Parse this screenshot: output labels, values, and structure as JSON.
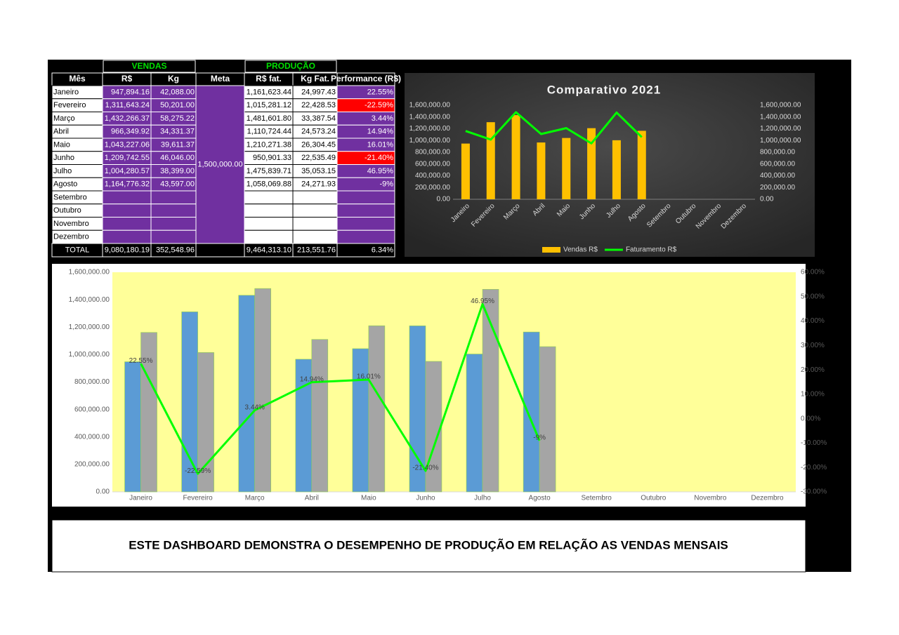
{
  "table": {
    "group_headers": [
      "VENDAS",
      "PRODUÇÃO"
    ],
    "headers": [
      "Mês",
      "R$",
      "Kg",
      "Meta",
      "R$ fat.",
      "Kg Fat.",
      "Performance (R$)"
    ],
    "meta": "1,500,000.00",
    "rows": [
      {
        "month": "Janeiro",
        "sales_value": "947,894.16",
        "sales_kg": "42,088.00",
        "prod_value": "1,161,623.44",
        "prod_kg": "24,997.43",
        "performance": "22.55%"
      },
      {
        "month": "Fevereiro",
        "sales_value": "1,311,643.24",
        "sales_kg": "50,201.00",
        "prod_value": "1,015,281.12",
        "prod_kg": "22,428.53",
        "performance": "-22.59%"
      },
      {
        "month": "Março",
        "sales_value": "1,432,266.37",
        "sales_kg": "58,275.22",
        "prod_value": "1,481,601.80",
        "prod_kg": "33,387.54",
        "performance": "3.44%"
      },
      {
        "month": "Abril",
        "sales_value": "966,349.92",
        "sales_kg": "34,331.37",
        "prod_value": "1,110,724.44",
        "prod_kg": "24,573.24",
        "performance": "14.94%"
      },
      {
        "month": "Maio",
        "sales_value": "1,043,227.06",
        "sales_kg": "39,611.37",
        "prod_value": "1,210,271.38",
        "prod_kg": "26,304.45",
        "performance": "16.01%"
      },
      {
        "month": "Junho",
        "sales_value": "1,209,742.55",
        "sales_kg": "46,046.00",
        "prod_value": "950,901.33",
        "prod_kg": "22,535.49",
        "performance": "-21.40%"
      },
      {
        "month": "Julho",
        "sales_value": "1,004,280.57",
        "sales_kg": "38,399.00",
        "prod_value": "1,475,839.71",
        "prod_kg": "35,053.15",
        "performance": "46.95%"
      },
      {
        "month": "Agosto",
        "sales_value": "1,164,776.32",
        "sales_kg": "43,597.00",
        "prod_value": "1,058,069.88",
        "prod_kg": "24,271.93",
        "performance": "-9%"
      },
      {
        "month": "Setembro"
      },
      {
        "month": "Outubro"
      },
      {
        "month": "Novembro"
      },
      {
        "month": "Dezembro"
      }
    ],
    "total": {
      "month": "TOTAL",
      "sales_value": "9,080,180.19",
      "sales_kg": "352,548.96",
      "prod_value": "9,464,313.10",
      "prod_kg": "213,551.76",
      "performance": "6.34%"
    }
  },
  "chart_data": [
    {
      "type": "combo",
      "title": "Comparativo 2021",
      "categories": [
        "Janeiro",
        "Fevereiro",
        "Março",
        "Abril",
        "Maio",
        "Junho",
        "Julho",
        "Agosto",
        "Setembro",
        "Outubro",
        "Novembro",
        "Dezembro"
      ],
      "series": [
        {
          "name": "Vendas R$",
          "type": "bar",
          "color": "#ffc000",
          "values": [
            947894.16,
            1311643.24,
            1432266.37,
            966349.92,
            1043227.06,
            1209742.55,
            1004280.57,
            1164776.32,
            null,
            null,
            null,
            null
          ]
        },
        {
          "name": "Faturamento R$",
          "type": "line",
          "color": "#00ff00",
          "values": [
            1161623.44,
            1015281.12,
            1481601.8,
            1110724.44,
            1210271.38,
            950901.33,
            1475839.71,
            1058069.88,
            null,
            null,
            null,
            null
          ]
        }
      ],
      "ylim": [
        0,
        1600000
      ],
      "yticks": [
        {
          "value": 0,
          "label": "0.00"
        },
        {
          "value": 200000,
          "label": "200,000.00"
        },
        {
          "value": 400000,
          "label": "400,000.00"
        },
        {
          "value": 600000,
          "label": "600,000.00"
        },
        {
          "value": 800000,
          "label": "800,000.00"
        },
        {
          "value": 1000000,
          "label": "1,000,000.00"
        },
        {
          "value": 1200000,
          "label": "1,200,000.00"
        },
        {
          "value": 1400000,
          "label": "1,400,000.00"
        },
        {
          "value": 1600000,
          "label": "1,600,000.00"
        }
      ],
      "y2lim": [
        0,
        1600000
      ],
      "y2ticks": [
        {
          "value": 0,
          "label": "0.00"
        },
        {
          "value": 200000,
          "label": "200,000.00"
        },
        {
          "value": 400000,
          "label": "400,000.00"
        },
        {
          "value": 600000,
          "label": "600,000.00"
        },
        {
          "value": 800000,
          "label": "800,000.00"
        },
        {
          "value": 1000000,
          "label": "1,000,000.00"
        },
        {
          "value": 1200000,
          "label": "1,200,000.00"
        },
        {
          "value": 1400000,
          "label": "1,400,000.00"
        },
        {
          "value": 1600000,
          "label": "1,600,000.00"
        }
      ],
      "legend": "bottom",
      "grid": false
    },
    {
      "type": "combo",
      "categories": [
        "Janeiro",
        "Fevereiro",
        "Março",
        "Abril",
        "Maio",
        "Junho",
        "Julho",
        "Agosto",
        "Setembro",
        "Outubro",
        "Novembro",
        "Dezembro"
      ],
      "series": [
        {
          "type": "bar",
          "color": "#5b9bd5",
          "values": [
            947894.16,
            1311643.24,
            1432266.37,
            966349.92,
            1043227.06,
            1209742.55,
            1004280.57,
            1164776.32,
            null,
            null,
            null,
            null
          ]
        },
        {
          "type": "bar",
          "color": "#a5a5a5",
          "values": [
            1161623.44,
            1015281.12,
            1481601.8,
            1110724.44,
            1210271.38,
            950901.33,
            1475839.71,
            1058069.88,
            null,
            null,
            null,
            null
          ]
        },
        {
          "type": "line",
          "axis": "y2",
          "color": "#00ff00",
          "values": [
            22.55,
            -22.59,
            3.44,
            14.94,
            16.01,
            -21.4,
            46.95,
            -9,
            null,
            null,
            null,
            null
          ],
          "value_labels": [
            "22.55%",
            "-22.59%",
            "3.44%",
            "14.94%",
            "16.01%",
            "-21.40%",
            "46.95%",
            "-9%",
            null,
            null,
            null,
            null
          ]
        }
      ],
      "ylim": [
        0,
        1600000
      ],
      "yticks": [
        {
          "value": 0,
          "label": "0.00"
        },
        {
          "value": 200000,
          "label": "200,000.00"
        },
        {
          "value": 400000,
          "label": "400,000.00"
        },
        {
          "value": 600000,
          "label": "600,000.00"
        },
        {
          "value": 800000,
          "label": "800,000.00"
        },
        {
          "value": 1000000,
          "label": "1,000,000.00"
        },
        {
          "value": 1200000,
          "label": "1,200,000.00"
        },
        {
          "value": 1400000,
          "label": "1,400,000.00"
        },
        {
          "value": 1600000,
          "label": "1,600,000.00"
        }
      ],
      "y2lim": [
        -30,
        60
      ],
      "y2ticks": [
        {
          "value": -30,
          "label": "-30.00%"
        },
        {
          "value": -20,
          "label": "-20.00%"
        },
        {
          "value": -10,
          "label": "-10.00%"
        },
        {
          "value": 0,
          "label": "0.00%"
        },
        {
          "value": 10,
          "label": "10.00%"
        },
        {
          "value": 20,
          "label": "20.00%"
        },
        {
          "value": 30,
          "label": "30.00%"
        },
        {
          "value": 40,
          "label": "40.00%"
        },
        {
          "value": 50,
          "label": "50.00%"
        },
        {
          "value": 60,
          "label": "60.00%"
        }
      ],
      "plot_background": "#ffff99",
      "grid": false
    }
  ],
  "footer": "ESTE DASHBOARD DEMONSTRA O DESEMPENHO DE PRODUÇÃO EM RELAÇÃO AS VENDAS MENSAIS"
}
